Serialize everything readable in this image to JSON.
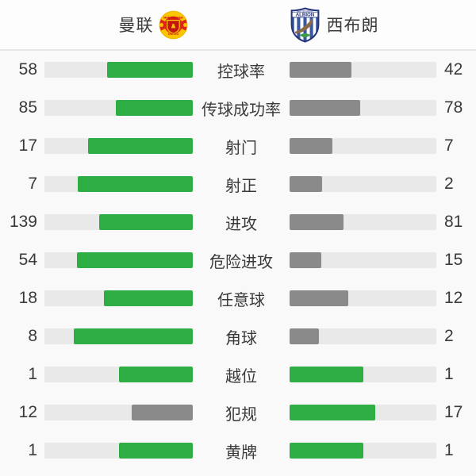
{
  "header": {
    "home": {
      "name": "曼联",
      "crest_line1": "MANCHESTER",
      "crest_line2": "UNITED"
    },
    "away": {
      "name": "西布朗",
      "crest_line1": "WEST BROMWICH",
      "crest_line2": "ALBION"
    }
  },
  "colors": {
    "win_bar": "#2ead44",
    "lose_bar": "#8a8a8a",
    "track": "#e9e9e9"
  },
  "stats": [
    {
      "label": "控球率",
      "home": 58,
      "away": 42
    },
    {
      "label": "传球成功率",
      "home": 85,
      "away": 78
    },
    {
      "label": "射门",
      "home": 17,
      "away": 7
    },
    {
      "label": "射正",
      "home": 7,
      "away": 2
    },
    {
      "label": "进攻",
      "home": 139,
      "away": 81
    },
    {
      "label": "危险进攻",
      "home": 54,
      "away": 15
    },
    {
      "label": "任意球",
      "home": 18,
      "away": 12
    },
    {
      "label": "角球",
      "home": 8,
      "away": 2
    },
    {
      "label": "越位",
      "home": 1,
      "away": 1
    },
    {
      "label": "犯规",
      "home": 12,
      "away": 17
    },
    {
      "label": "黄牌",
      "home": 1,
      "away": 1
    }
  ],
  "chart_data": {
    "type": "bar",
    "categories": [
      "控球率",
      "传球成功率",
      "射门",
      "射正",
      "进攻",
      "危险进攻",
      "任意球",
      "角球",
      "越位",
      "犯规",
      "黄牌"
    ],
    "series": [
      {
        "name": "曼联",
        "values": [
          58,
          85,
          17,
          7,
          139,
          54,
          18,
          8,
          1,
          12,
          1
        ]
      },
      {
        "name": "西布朗",
        "values": [
          42,
          78,
          7,
          2,
          81,
          15,
          12,
          2,
          1,
          17,
          1
        ]
      }
    ],
    "title": "",
    "legend_position": "top",
    "note": "paired horizontal bars; fill fraction = value / (home+away); larger (or equal) value is green, smaller is gray"
  }
}
